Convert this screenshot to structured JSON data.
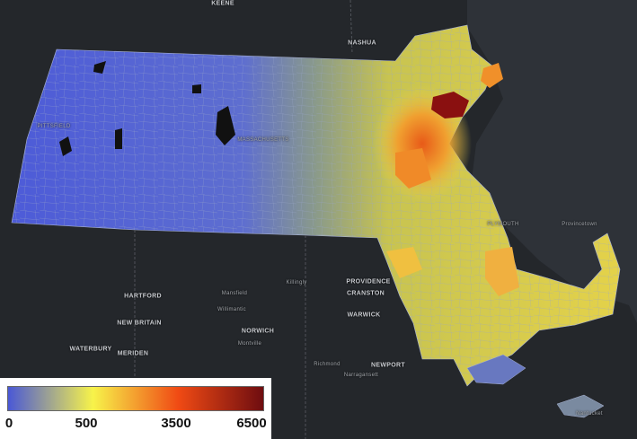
{
  "map": {
    "background_land": "#24272b",
    "background_water": "#2e3238",
    "state_low_color": "#5060d8",
    "town_border_color": "#9aa6c8",
    "places": [
      {
        "name": "KEENE",
        "size": "regular"
      },
      {
        "name": "NASHUA",
        "size": "regular"
      },
      {
        "name": "HARTFORD",
        "size": "regular"
      },
      {
        "name": "NEW BRITAIN",
        "size": "regular"
      },
      {
        "name": "WATERBURY",
        "size": "regular"
      },
      {
        "name": "MERIDEN",
        "size": "regular"
      },
      {
        "name": "Mansfield",
        "size": "small"
      },
      {
        "name": "Killingly",
        "size": "small"
      },
      {
        "name": "Willimantic",
        "size": "small"
      },
      {
        "name": "NORWICH",
        "size": "regular"
      },
      {
        "name": "Montville",
        "size": "small"
      },
      {
        "name": "PROVIDENCE",
        "size": "regular"
      },
      {
        "name": "CRANSTON",
        "size": "regular"
      },
      {
        "name": "WARWICK",
        "size": "regular"
      },
      {
        "name": "Richmond",
        "size": "small"
      },
      {
        "name": "NEWPORT",
        "size": "regular"
      },
      {
        "name": "Narragansett",
        "size": "small"
      },
      {
        "name": "PITTSFIELD",
        "size": "small"
      },
      {
        "name": "MASSACHUSETTS",
        "size": "small"
      },
      {
        "name": "PLYMOUTH",
        "size": "small"
      },
      {
        "name": "Provincetown",
        "size": "small"
      },
      {
        "name": "Nantucket",
        "size": "small"
      }
    ]
  },
  "legend": {
    "labels": [
      "0",
      "500",
      "3500",
      "6500"
    ],
    "stops": [
      {
        "value": 0,
        "color": "#4a58d6"
      },
      {
        "value": 500,
        "color": "#f7f34a"
      },
      {
        "value": 3500,
        "color": "#f04a14"
      },
      {
        "value": 6500,
        "color": "#6e0d10"
      }
    ]
  }
}
